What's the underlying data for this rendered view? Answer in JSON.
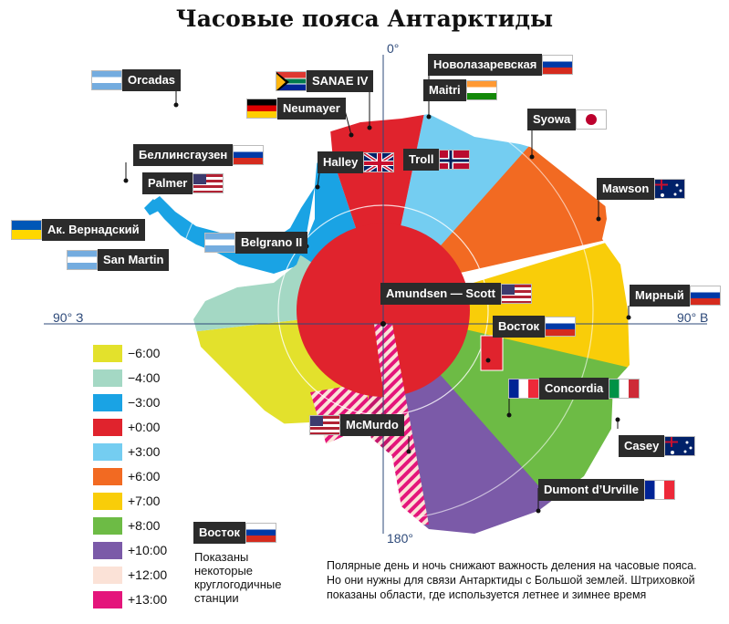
{
  "title": "Часовые пояса Антарктиды",
  "axes": {
    "top": "0°",
    "bottom": "180°",
    "left": "90° З",
    "right": "90° В"
  },
  "stations": {
    "orcadas": "Orcadas",
    "sanae": "SANAE IV",
    "neumayer": "Neumayer",
    "novolazarevskaya": "Новолазаревская",
    "maitri": "Maitri",
    "syowa": "Syowa",
    "bellingshausen": "Беллинсгаузен",
    "palmer": "Palmer",
    "halley": "Halley",
    "troll": "Troll",
    "mawson": "Mawson",
    "vernadsky": "Ак. Вернадский",
    "belgrano": "Belgrano II",
    "san_martin": "San Martin",
    "amundsen_scott": "Amundsen — Scott",
    "mirny": "Мирный",
    "vostok": "Восток",
    "concordia": "Concordia",
    "mcmurdo": "McMurdo",
    "casey": "Casey",
    "dumont": "Dumont d’Urville"
  },
  "legend": [
    {
      "label": "−6:00",
      "color": "#e3e12c"
    },
    {
      "label": "−4:00",
      "color": "#a4d8c4"
    },
    {
      "label": "−3:00",
      "color": "#1aa3e4"
    },
    {
      "label": "+0:00",
      "color": "#e0232d"
    },
    {
      "label": "+3:00",
      "color": "#74cdf1"
    },
    {
      "label": "+6:00",
      "color": "#f26a22"
    },
    {
      "label": "+7:00",
      "color": "#f9cd09"
    },
    {
      "label": "+8:00",
      "color": "#6dbb45"
    },
    {
      "label": "+10:00",
      "color": "#7b5aa8"
    },
    {
      "label": "+12:00",
      "color": "#fbe2d7"
    },
    {
      "label": "+13:00",
      "color": "#e4157b"
    }
  ],
  "legend_station": "Восток",
  "legend_note": [
    "Показаны",
    "некоторые",
    "круглогодичные",
    "станции"
  ],
  "note": [
    "Полярные день и ночь снижают важность деления на часовые пояса.",
    "Но они нужны для связи Антарктиды с Большой землей. Штриховкой",
    "показаны области, где используется летнее и зимнее время"
  ]
}
